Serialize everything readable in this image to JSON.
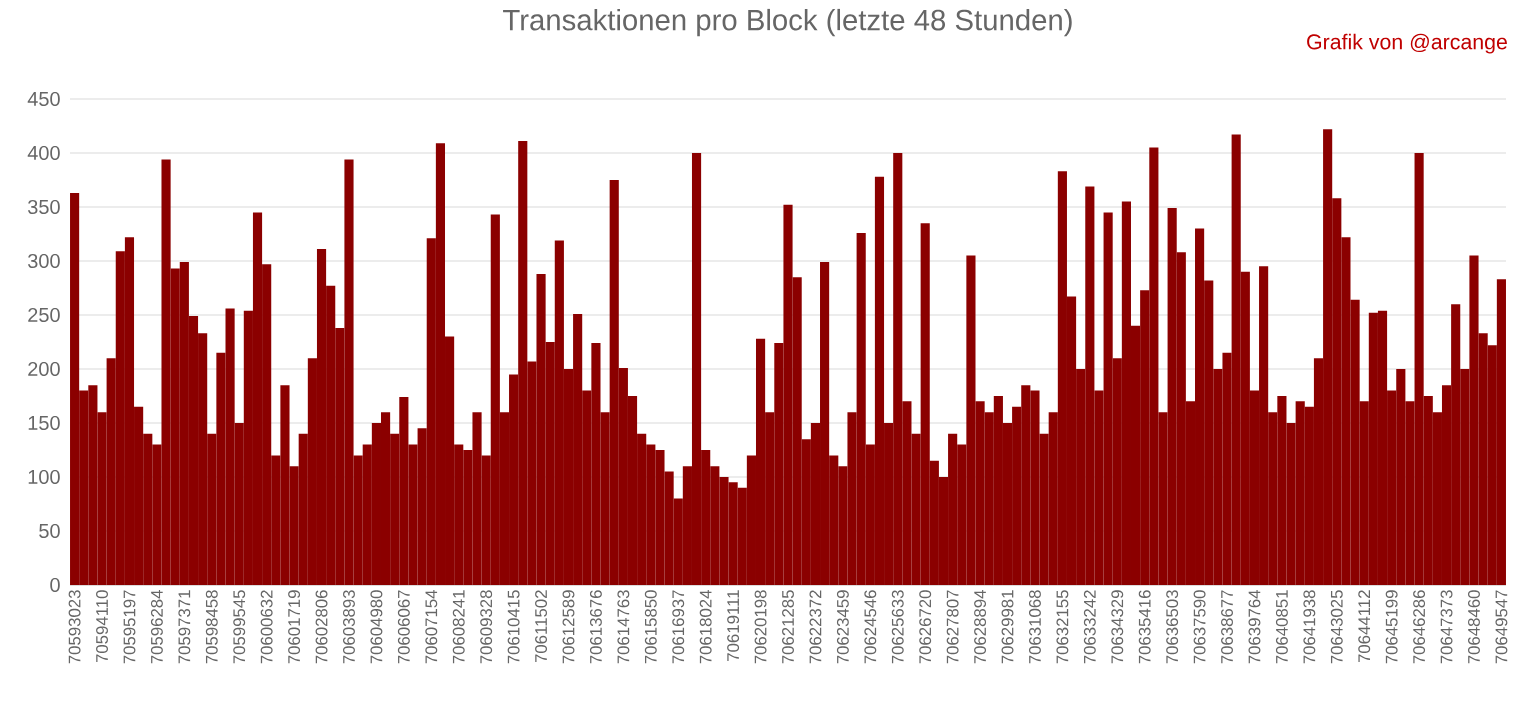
{
  "chart_data": {
    "type": "bar",
    "title": "Transaktionen pro Block (letzte 48 Stunden)",
    "annotations": [
      "Grafik von @arcange"
    ],
    "categories": [
      "70593023",
      null,
      null,
      "70594110",
      null,
      null,
      "70595197",
      null,
      null,
      "70596284",
      null,
      null,
      "70597371",
      null,
      null,
      "70598458",
      null,
      null,
      "70599545",
      null,
      null,
      "70600632",
      null,
      null,
      "70601719",
      null,
      null,
      "70602806",
      null,
      null,
      "70603893",
      null,
      null,
      "70604980",
      null,
      null,
      "70606067",
      null,
      null,
      "70607154",
      null,
      null,
      "70608241",
      null,
      null,
      "70609328",
      null,
      null,
      "70610415",
      null,
      null,
      "70611502",
      null,
      null,
      "70612589",
      null,
      null,
      "70613676",
      null,
      null,
      "70614763",
      null,
      null,
      "70615850",
      null,
      null,
      "70616937",
      null,
      null,
      "70618024",
      null,
      null,
      "70619111",
      null,
      null,
      "70620198",
      null,
      null,
      "70621285",
      null,
      null,
      "70622372",
      null,
      null,
      "70623459",
      null,
      null,
      "70624546",
      null,
      null,
      "70625633",
      null,
      null,
      "70626720",
      null,
      null,
      "70627807",
      null,
      null,
      "70628894",
      null,
      null,
      "70629981",
      null,
      null,
      "70631068",
      null,
      null,
      "70632155",
      null,
      null,
      "70633242",
      null,
      null,
      "70634329",
      null,
      null,
      "70635416",
      null,
      null,
      "70636503",
      null,
      null,
      "70637590",
      null,
      null,
      "70638677",
      null,
      null,
      "70639764",
      null,
      null,
      "70640851",
      null,
      null,
      "70641938",
      null,
      null,
      "70643025",
      null,
      null,
      "70644112",
      null,
      null,
      "70645199",
      null,
      null,
      "70646286",
      null,
      null,
      "70647373",
      null,
      null,
      "70648460",
      null,
      null,
      "70649547"
    ],
    "values": [
      363,
      180,
      185,
      160,
      210,
      309,
      322,
      165,
      140,
      130,
      394,
      293,
      299,
      249,
      233,
      140,
      215,
      256,
      150,
      254,
      345,
      297,
      120,
      185,
      110,
      140,
      210,
      311,
      277,
      238,
      394,
      120,
      130,
      150,
      160,
      140,
      174,
      130,
      145,
      321,
      409,
      230,
      130,
      125,
      160,
      120,
      343,
      160,
      195,
      411,
      207,
      288,
      225,
      319,
      200,
      251,
      180,
      224,
      160,
      375,
      201,
      175,
      140,
      130,
      125,
      105,
      80,
      110,
      400,
      125,
      110,
      100,
      95,
      90,
      120,
      228,
      160,
      224,
      352,
      285,
      135,
      150,
      299,
      120,
      110,
      160,
      326,
      130,
      378,
      150,
      400,
      170,
      140,
      335,
      115,
      100,
      140,
      130,
      305,
      170,
      160,
      175,
      150,
      165,
      185,
      180,
      140,
      160,
      383,
      267,
      200,
      369,
      180,
      345,
      210,
      355,
      240,
      273,
      405,
      160,
      349,
      308,
      170,
      330,
      282,
      200,
      215,
      417,
      290,
      180,
      295,
      160,
      175,
      150,
      170,
      165,
      210,
      422,
      358,
      322,
      264,
      170,
      252,
      254,
      180,
      200,
      170,
      400,
      175,
      160,
      185,
      260,
      200,
      305,
      233,
      222,
      283
    ],
    "color": "#8b0000",
    "ylim": [
      0,
      450
    ],
    "yticks": [
      0,
      50,
      100,
      150,
      200,
      250,
      300,
      350,
      400,
      450
    ],
    "grid": "y"
  }
}
